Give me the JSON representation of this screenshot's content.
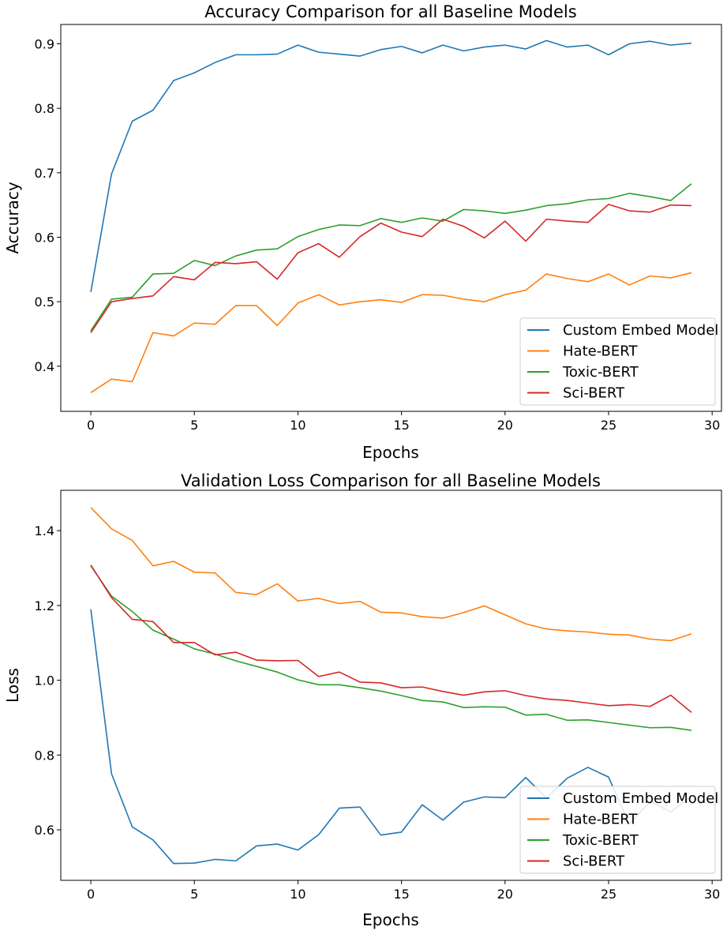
{
  "chart_data": [
    {
      "type": "line",
      "title": "Accuracy Comparison for all Baseline Models",
      "xlabel": "Epochs",
      "ylabel": "Accuracy",
      "xlim": [
        -1.45,
        30.45
      ],
      "ylim": [
        0.33,
        0.93
      ],
      "xticks": [
        0,
        5,
        10,
        15,
        20,
        25,
        30
      ],
      "yticks": [
        0.4,
        0.5,
        0.6,
        0.7,
        0.8,
        0.9
      ],
      "ytick_labels": [
        "0.4",
        "0.5",
        "0.6",
        "0.7",
        "0.8",
        "0.9"
      ],
      "grid": false,
      "legend_position": "lower-right",
      "x": [
        0,
        1,
        2,
        3,
        4,
        5,
        6,
        7,
        8,
        9,
        10,
        11,
        12,
        13,
        14,
        15,
        16,
        17,
        18,
        19,
        20,
        21,
        22,
        23,
        24,
        25,
        26,
        27,
        28,
        29
      ],
      "series": [
        {
          "name": "Custom Embed Model",
          "color": "#1f77b4",
          "values": [
            0.515,
            0.698,
            0.78,
            0.797,
            0.843,
            0.855,
            0.871,
            0.883,
            0.883,
            0.884,
            0.898,
            0.887,
            0.884,
            0.881,
            0.891,
            0.896,
            0.886,
            0.898,
            0.889,
            0.895,
            0.898,
            0.892,
            0.905,
            0.895,
            0.898,
            0.883,
            0.9,
            0.904,
            0.898,
            0.901
          ]
        },
        {
          "name": "Hate-BERT",
          "color": "#ff7f0e",
          "values": [
            0.359,
            0.38,
            0.376,
            0.452,
            0.447,
            0.467,
            0.465,
            0.494,
            0.494,
            0.463,
            0.498,
            0.511,
            0.495,
            0.5,
            0.503,
            0.499,
            0.511,
            0.51,
            0.504,
            0.5,
            0.511,
            0.518,
            0.543,
            0.536,
            0.531,
            0.543,
            0.526,
            0.54,
            0.537,
            0.545
          ]
        },
        {
          "name": "Toxic-BERT",
          "color": "#2ca02c",
          "values": [
            0.455,
            0.504,
            0.507,
            0.543,
            0.544,
            0.564,
            0.556,
            0.571,
            0.58,
            0.582,
            0.601,
            0.612,
            0.619,
            0.618,
            0.629,
            0.623,
            0.63,
            0.625,
            0.643,
            0.641,
            0.637,
            0.642,
            0.649,
            0.652,
            0.658,
            0.66,
            0.668,
            0.663,
            0.657,
            0.683
          ]
        },
        {
          "name": "Sci-BERT",
          "color": "#d62728",
          "values": [
            0.452,
            0.5,
            0.505,
            0.509,
            0.539,
            0.534,
            0.561,
            0.559,
            0.562,
            0.535,
            0.576,
            0.59,
            0.569,
            0.601,
            0.622,
            0.608,
            0.601,
            0.628,
            0.617,
            0.599,
            0.625,
            0.594,
            0.628,
            0.625,
            0.623,
            0.651,
            0.641,
            0.639,
            0.65,
            0.649
          ]
        }
      ]
    },
    {
      "type": "line",
      "title": "Validation Loss Comparison for all Baseline Models",
      "xlabel": "Epochs",
      "ylabel": "Loss",
      "xlim": [
        -1.45,
        30.45
      ],
      "ylim": [
        0.465,
        1.508
      ],
      "xticks": [
        0,
        5,
        10,
        15,
        20,
        25,
        30
      ],
      "yticks": [
        0.6,
        0.8,
        1.0,
        1.2,
        1.4
      ],
      "ytick_labels": [
        "0.6",
        "0.8",
        "1.0",
        "1.2",
        "1.4"
      ],
      "grid": false,
      "legend_position": "lower-right",
      "x": [
        0,
        1,
        2,
        3,
        4,
        5,
        6,
        7,
        8,
        9,
        10,
        11,
        12,
        13,
        14,
        15,
        16,
        17,
        18,
        19,
        20,
        21,
        22,
        23,
        24,
        25,
        26,
        27,
        28,
        29
      ],
      "series": [
        {
          "name": "Custom Embed Model",
          "color": "#1f77b4",
          "values": [
            1.19,
            0.75,
            0.608,
            0.573,
            0.51,
            0.511,
            0.521,
            0.517,
            0.557,
            0.562,
            0.546,
            0.587,
            0.658,
            0.661,
            0.586,
            0.594,
            0.667,
            0.626,
            0.674,
            0.688,
            0.686,
            0.74,
            0.685,
            0.738,
            0.767,
            0.741,
            0.615,
            0.676,
            0.648,
            0.69
          ]
        },
        {
          "name": "Hate-BERT",
          "color": "#ff7f0e",
          "values": [
            1.462,
            1.405,
            1.374,
            1.306,
            1.318,
            1.289,
            1.287,
            1.235,
            1.229,
            1.258,
            1.212,
            1.219,
            1.205,
            1.211,
            1.182,
            1.18,
            1.17,
            1.166,
            1.181,
            1.199,
            1.175,
            1.151,
            1.137,
            1.132,
            1.129,
            1.123,
            1.121,
            1.11,
            1.106,
            1.124
          ]
        },
        {
          "name": "Toxic-BERT",
          "color": "#2ca02c",
          "values": [
            1.306,
            1.225,
            1.184,
            1.134,
            1.11,
            1.084,
            1.07,
            1.052,
            1.037,
            1.022,
            1.001,
            0.988,
            0.988,
            0.98,
            0.971,
            0.959,
            0.946,
            0.942,
            0.927,
            0.929,
            0.928,
            0.907,
            0.909,
            0.893,
            0.894,
            0.887,
            0.88,
            0.873,
            0.874,
            0.866
          ]
        },
        {
          "name": "Sci-BERT",
          "color": "#d62728",
          "values": [
            1.308,
            1.221,
            1.163,
            1.157,
            1.101,
            1.101,
            1.068,
            1.075,
            1.054,
            1.052,
            1.053,
            1.01,
            1.022,
            0.995,
            0.993,
            0.98,
            0.982,
            0.97,
            0.96,
            0.969,
            0.972,
            0.959,
            0.95,
            0.946,
            0.939,
            0.932,
            0.935,
            0.93,
            0.96,
            0.914
          ]
        }
      ]
    }
  ]
}
